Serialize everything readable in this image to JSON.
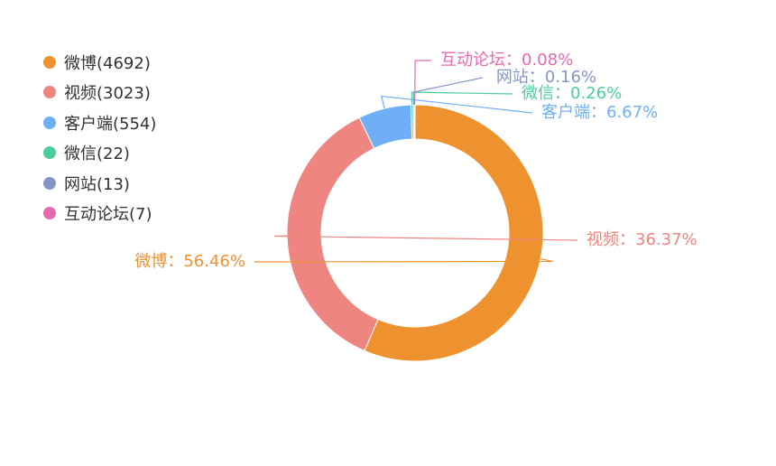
{
  "chart_data": {
    "type": "pie",
    "variant": "donut",
    "legend_position": "top-left",
    "slices": [
      {
        "name": "微博",
        "value": 4692,
        "percent_label": "56.46%",
        "color": "#EE9230"
      },
      {
        "name": "视频",
        "value": 3023,
        "percent_label": "36.37%",
        "color": "#EF8580"
      },
      {
        "name": "客户端",
        "value": 554,
        "percent_label": "6.67%",
        "color": "#6EAFF8"
      },
      {
        "name": "微信",
        "value": 22,
        "percent_label": "0.26%",
        "color": "#4CCE9C"
      },
      {
        "name": "网站",
        "value": 13,
        "percent_label": "0.16%",
        "color": "#8396C5"
      },
      {
        "name": "互动论坛",
        "value": 7,
        "percent_label": "0.08%",
        "color": "#E56BB0"
      }
    ],
    "label_separator": "："
  }
}
